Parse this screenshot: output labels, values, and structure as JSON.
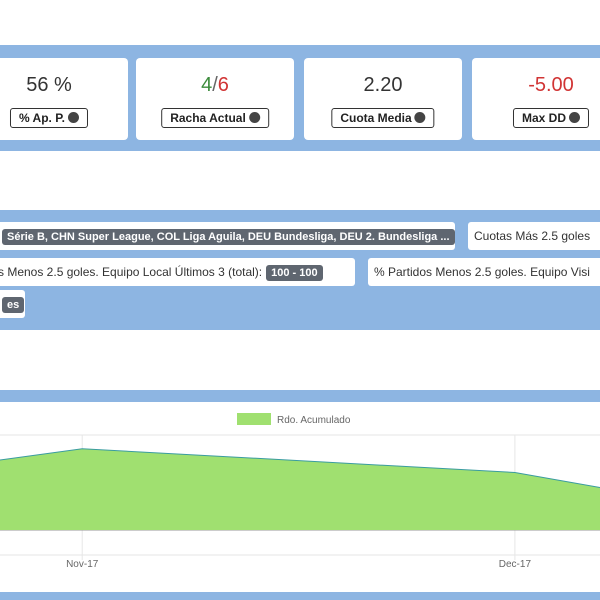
{
  "stats": [
    {
      "value": "56 %",
      "label": "% Ap. P."
    },
    {
      "value_parts": [
        "4",
        "/",
        "6"
      ],
      "label": "Racha Actual"
    },
    {
      "value": "2.20",
      "label": "Cuota Media"
    },
    {
      "value": "-5.00",
      "label": "Max DD"
    }
  ],
  "filters": [
    {
      "badge": "Série B, CHN Super League, COL Liga Aguila, DEU Bundesliga, DEU 2. Bundesliga ..."
    },
    {
      "text": "Cuotas Más 2.5 goles"
    },
    {
      "text": "s Menos 2.5 goles. Equipo Local Últimos 3 (total):",
      "badge": "100 - 100"
    },
    {
      "text": "% Partidos Menos 2.5 goles. Equipo Visi"
    },
    {
      "badge": "es"
    }
  ],
  "chart_data": {
    "type": "area",
    "x": [
      -5.7,
      0,
      30,
      35.9
    ],
    "series": [
      {
        "name": "Rdo. Acumulado",
        "color": "#a0e070",
        "line_color": "#3a9ca0",
        "values": [
          5.6,
          6.5,
          4.6,
          3.4
        ]
      }
    ],
    "xlim": [
      -5.7,
      35.9
    ],
    "xticks": [
      {
        "value": 0,
        "label": "Nov-17"
      },
      {
        "value": 30,
        "label": "Dec-17"
      }
    ],
    "ylim": [
      -2,
      7.6
    ],
    "grid": true
  }
}
